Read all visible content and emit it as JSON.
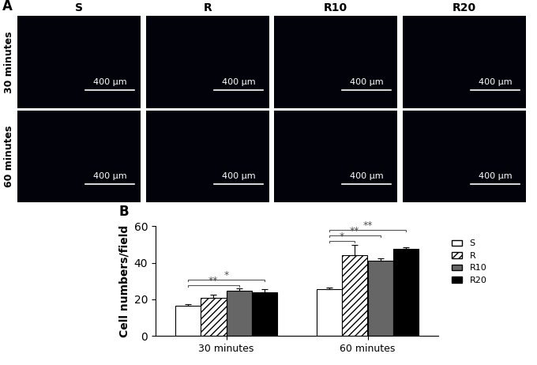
{
  "panel_a": {
    "label": "A",
    "columns": [
      "S",
      "R",
      "R10",
      "R20"
    ],
    "rows": [
      "30 minutes",
      "60 minutes"
    ],
    "scale_bar": "400 μm"
  },
  "chart_data": {
    "type": "bar",
    "label": "B",
    "categories": [
      "30 minutes",
      "60 minutes"
    ],
    "y_label": "Cell numbers/field",
    "ylim": [
      0,
      60
    ],
    "yticks": [
      0,
      20,
      40,
      60
    ],
    "legend": "upper left",
    "series": [
      {
        "name": "S",
        "color": "#ffffff",
        "values": [
          16.5,
          25.5
        ],
        "errors": [
          1.0,
          1.0
        ]
      },
      {
        "name": "R",
        "color": "#ffffff",
        "values": [
          21.0,
          44.0
        ],
        "errors": [
          1.5,
          6.0
        ]
      },
      {
        "name": "R10",
        "color": "#666666",
        "values": [
          24.8,
          41.0
        ],
        "errors": [
          1.0,
          1.5
        ]
      },
      {
        "name": "R20",
        "color": "#000000",
        "values": [
          24.0,
          47.5
        ],
        "errors": [
          1.5,
          1.2
        ]
      }
    ],
    "significance": [
      {
        "category": "30 minutes",
        "from": "S",
        "to": "R10",
        "label": "**"
      },
      {
        "category": "30 minutes",
        "from": "S",
        "to": "R20",
        "label": "*"
      },
      {
        "category": "60 minutes",
        "from": "S",
        "to": "R",
        "label": "*"
      },
      {
        "category": "60 minutes",
        "from": "S",
        "to": "R10",
        "label": "**"
      },
      {
        "category": "60 minutes",
        "from": "S",
        "to": "R20",
        "label": "**"
      }
    ]
  }
}
